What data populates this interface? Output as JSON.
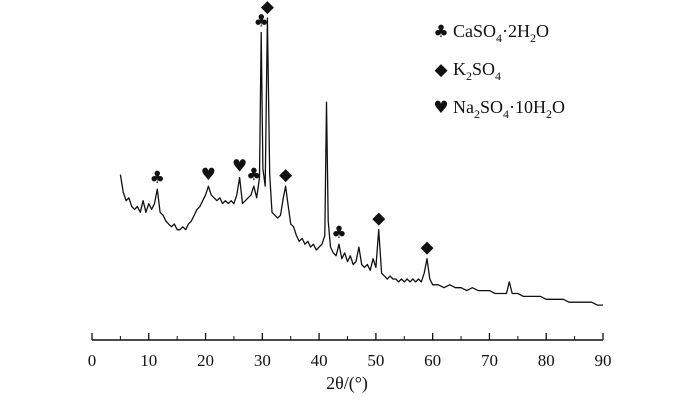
{
  "chart_data": {
    "type": "line",
    "xlabel": "2θ/(°)",
    "x_ticks": [
      0,
      10,
      20,
      30,
      40,
      50,
      60,
      70,
      80,
      90
    ],
    "xlim": [
      0,
      90
    ],
    "legend_position": "top-right",
    "series": [
      {
        "points": [
          [
            5.0,
            0.46
          ],
          [
            5.5,
            0.4
          ],
          [
            6.0,
            0.37
          ],
          [
            6.5,
            0.38
          ],
          [
            7.0,
            0.35
          ],
          [
            7.5,
            0.34
          ],
          [
            8.0,
            0.35
          ],
          [
            8.5,
            0.33
          ],
          [
            9.0,
            0.37
          ],
          [
            9.5,
            0.33
          ],
          [
            10.0,
            0.36
          ],
          [
            10.5,
            0.34
          ],
          [
            11.0,
            0.36
          ],
          [
            11.5,
            0.41
          ],
          [
            12.0,
            0.33
          ],
          [
            12.5,
            0.32
          ],
          [
            13.0,
            0.3
          ],
          [
            13.5,
            0.29
          ],
          [
            14.0,
            0.28
          ],
          [
            14.5,
            0.29
          ],
          [
            15.0,
            0.27
          ],
          [
            15.5,
            0.27
          ],
          [
            16.0,
            0.28
          ],
          [
            16.5,
            0.27
          ],
          [
            17.0,
            0.29
          ],
          [
            17.5,
            0.3
          ],
          [
            18.0,
            0.32
          ],
          [
            18.5,
            0.34
          ],
          [
            19.0,
            0.35
          ],
          [
            19.5,
            0.37
          ],
          [
            20.0,
            0.39
          ],
          [
            20.5,
            0.42
          ],
          [
            21.0,
            0.39
          ],
          [
            21.5,
            0.38
          ],
          [
            22.0,
            0.37
          ],
          [
            22.5,
            0.38
          ],
          [
            23.0,
            0.36
          ],
          [
            23.5,
            0.37
          ],
          [
            24.0,
            0.36
          ],
          [
            24.5,
            0.37
          ],
          [
            25.0,
            0.36
          ],
          [
            25.5,
            0.39
          ],
          [
            26.0,
            0.45
          ],
          [
            26.5,
            0.36
          ],
          [
            27.0,
            0.37
          ],
          [
            27.5,
            0.38
          ],
          [
            28.0,
            0.39
          ],
          [
            28.5,
            0.42
          ],
          [
            29.0,
            0.38
          ],
          [
            29.5,
            0.45
          ],
          [
            29.8,
            0.95
          ],
          [
            30.1,
            0.48
          ],
          [
            30.5,
            0.42
          ],
          [
            30.9,
            1.0
          ],
          [
            31.3,
            0.46
          ],
          [
            31.7,
            0.33
          ],
          [
            32.2,
            0.32
          ],
          [
            32.7,
            0.31
          ],
          [
            33.2,
            0.32
          ],
          [
            33.7,
            0.38
          ],
          [
            34.1,
            0.42
          ],
          [
            34.5,
            0.36
          ],
          [
            35.0,
            0.29
          ],
          [
            35.5,
            0.28
          ],
          [
            36.0,
            0.25
          ],
          [
            36.5,
            0.23
          ],
          [
            37.0,
            0.24
          ],
          [
            37.5,
            0.22
          ],
          [
            38.0,
            0.23
          ],
          [
            38.5,
            0.21
          ],
          [
            39.0,
            0.22
          ],
          [
            39.5,
            0.2
          ],
          [
            40.0,
            0.21
          ],
          [
            40.5,
            0.22
          ],
          [
            41.0,
            0.25
          ],
          [
            41.3,
            0.71
          ],
          [
            41.6,
            0.3
          ],
          [
            42.0,
            0.21
          ],
          [
            42.5,
            0.19
          ],
          [
            43.0,
            0.18
          ],
          [
            43.5,
            0.22
          ],
          [
            44.0,
            0.17
          ],
          [
            44.5,
            0.19
          ],
          [
            45.0,
            0.16
          ],
          [
            45.5,
            0.18
          ],
          [
            46.0,
            0.15
          ],
          [
            46.5,
            0.16
          ],
          [
            47.0,
            0.21
          ],
          [
            47.5,
            0.15
          ],
          [
            48.0,
            0.14
          ],
          [
            48.5,
            0.15
          ],
          [
            49.0,
            0.13
          ],
          [
            49.5,
            0.17
          ],
          [
            50.0,
            0.14
          ],
          [
            50.5,
            0.27
          ],
          [
            51.0,
            0.12
          ],
          [
            51.5,
            0.11
          ],
          [
            52.0,
            0.1
          ],
          [
            52.5,
            0.11
          ],
          [
            53.0,
            0.1
          ],
          [
            53.5,
            0.1
          ],
          [
            54.0,
            0.09
          ],
          [
            54.5,
            0.1
          ],
          [
            55.0,
            0.09
          ],
          [
            55.5,
            0.1
          ],
          [
            56.0,
            0.09
          ],
          [
            56.5,
            0.1
          ],
          [
            57.0,
            0.09
          ],
          [
            57.5,
            0.1
          ],
          [
            58.0,
            0.09
          ],
          [
            58.5,
            0.12
          ],
          [
            59.0,
            0.17
          ],
          [
            59.5,
            0.1
          ],
          [
            60.0,
            0.08
          ],
          [
            61.0,
            0.08
          ],
          [
            62.0,
            0.07
          ],
          [
            63.0,
            0.08
          ],
          [
            64.0,
            0.07
          ],
          [
            65.0,
            0.07
          ],
          [
            66.0,
            0.06
          ],
          [
            67.0,
            0.07
          ],
          [
            68.0,
            0.06
          ],
          [
            69.0,
            0.06
          ],
          [
            70.0,
            0.06
          ],
          [
            71.0,
            0.05
          ],
          [
            72.0,
            0.05
          ],
          [
            73.0,
            0.05
          ],
          [
            73.5,
            0.09
          ],
          [
            74.0,
            0.05
          ],
          [
            75.0,
            0.05
          ],
          [
            76.0,
            0.04
          ],
          [
            77.0,
            0.04
          ],
          [
            78.0,
            0.04
          ],
          [
            79.0,
            0.04
          ],
          [
            80.0,
            0.03
          ],
          [
            81.0,
            0.03
          ],
          [
            82.0,
            0.03
          ],
          [
            83.0,
            0.03
          ],
          [
            84.0,
            0.02
          ],
          [
            85.0,
            0.02
          ],
          [
            86.0,
            0.02
          ],
          [
            87.0,
            0.02
          ],
          [
            88.0,
            0.02
          ],
          [
            89.0,
            0.01
          ],
          [
            90.0,
            0.01
          ]
        ]
      }
    ],
    "legend": [
      {
        "symbol": "club",
        "glyph": "♣",
        "label": [
          "CaSO",
          "4",
          "·2H",
          "2",
          "O"
        ]
      },
      {
        "symbol": "diamond",
        "glyph": "◆",
        "label": [
          "K",
          "2",
          "SO",
          "4"
        ]
      },
      {
        "symbol": "heart",
        "glyph": "♥",
        "label": [
          "Na",
          "2",
          "SO",
          "4",
          "·10H",
          "2",
          "O"
        ]
      }
    ],
    "peak_markers": [
      {
        "glyph": "♣",
        "x": 11.5,
        "y": 0.41
      },
      {
        "glyph": "♥",
        "x": 20.5,
        "y": 0.42
      },
      {
        "glyph": "♥",
        "x": 26.0,
        "y": 0.45
      },
      {
        "glyph": "♣",
        "x": 28.5,
        "y": 0.42
      },
      {
        "glyph": "♣",
        "x": 29.8,
        "y": 0.95
      },
      {
        "glyph": "◆",
        "x": 30.9,
        "y": 1.0
      },
      {
        "glyph": "◆",
        "x": 34.1,
        "y": 0.42
      },
      {
        "glyph": "♣",
        "x": 43.5,
        "y": 0.22
      },
      {
        "glyph": "◆",
        "x": 50.5,
        "y": 0.27
      },
      {
        "glyph": "◆",
        "x": 59.0,
        "y": 0.17
      }
    ]
  }
}
